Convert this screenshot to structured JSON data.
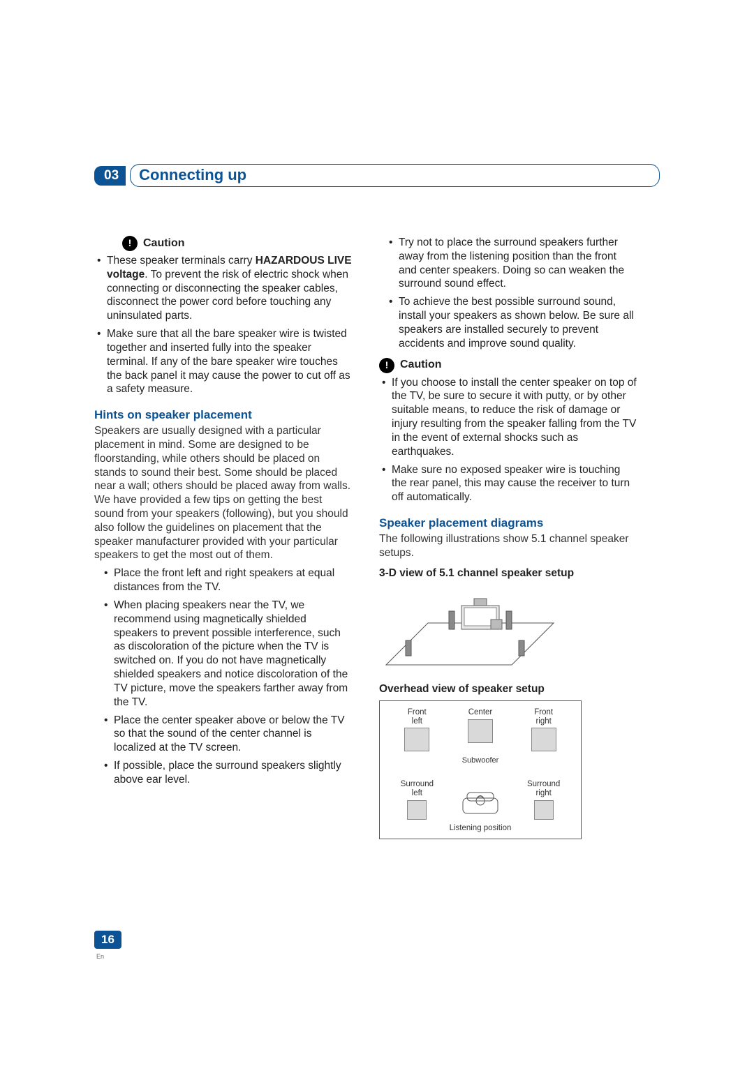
{
  "chapter": {
    "number": "03",
    "title": "Connecting up"
  },
  "left": {
    "caution_label": "Caution",
    "caution_items": [
      {
        "pre": "These speaker terminals carry ",
        "bold": "HAZARDOUS LIVE voltage",
        "post": ". To prevent the risk of electric shock when connecting or disconnecting the speaker cables, disconnect the power cord before touching any uninsulated parts."
      },
      {
        "text": "Make sure that all the bare speaker wire is twisted together and inserted fully into the speaker terminal. If any of the bare speaker wire touches the back panel it may cause the power to cut off as a safety measure."
      }
    ],
    "hints_heading": "Hints on speaker placement",
    "hints_body": "Speakers are usually designed with a particular placement in mind. Some are designed to be floorstanding, while others should be placed on stands to sound their best. Some should be placed near a wall; others should be placed away from walls. We have provided a few tips on getting the best sound from your speakers (following), but you should also follow the guidelines on placement that the speaker manufacturer provided with your particular speakers to get the most out of them.",
    "hints_items": [
      "Place the front left and right speakers at equal distances from the TV.",
      "When placing speakers near the TV, we recommend using magnetically shielded speakers to prevent possible interference, such as discoloration of the picture when the TV is switched on. If you do not have magnetically shielded speakers and notice discoloration of the TV picture, move the speakers farther away from the TV.",
      "Place the center speaker above or below the TV so that the sound of the center channel is localized at the TV screen.",
      "If possible, place the surround speakers slightly above ear level."
    ]
  },
  "right": {
    "top_items": [
      "Try not to place the surround speakers further away from the listening position than the front and center speakers. Doing so can weaken the surround sound effect.",
      "To achieve the best possible surround sound, install your speakers as shown below. Be sure all speakers are installed securely to prevent accidents and improve sound quality."
    ],
    "caution_label": "Caution",
    "caution_items": [
      "If you choose to install the center speaker on top of the TV, be sure to secure it with putty, or by other suitable means, to reduce the risk of damage or injury resulting from the speaker falling from the TV in the event of external shocks such as earthquakes.",
      "Make sure no exposed speaker wire is touching the rear panel, this may cause the receiver to turn off automatically."
    ],
    "diagrams_heading": "Speaker placement diagrams",
    "diagrams_body": "The following illustrations show 5.1 channel speaker setups.",
    "sub1": "3-D view of 5.1 channel speaker setup",
    "sub2": "Overhead view of speaker setup",
    "overhead": {
      "fl": "Front\nleft",
      "center": "Center",
      "fr": "Front\nright",
      "sub": "Subwoofer",
      "sl": "Surround\nleft",
      "sr": "Surround\nright",
      "listen": "Listening position"
    }
  },
  "footer": {
    "page": "16",
    "lang": "En"
  },
  "colors": {
    "accent": "#0b5394",
    "text": "#222222"
  }
}
